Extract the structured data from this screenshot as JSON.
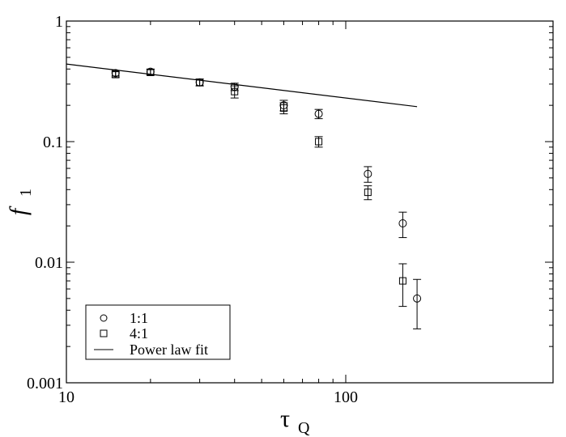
{
  "chart_data": {
    "type": "scatter",
    "x_scale": "log",
    "y_scale": "log",
    "xlim": [
      10,
      180
    ],
    "ylim": [
      0.001,
      1
    ],
    "x_ticks": [
      "10",
      "100"
    ],
    "y_ticks": [
      "0.001",
      "0.01",
      "0.1",
      "1"
    ],
    "xlabel": {
      "main": "τ",
      "sub": "Q"
    },
    "ylabel": {
      "main": "f",
      "sub": "1"
    },
    "grid": false,
    "legend_position": "bottom-left",
    "series": [
      {
        "name": "1:1",
        "marker": "circle",
        "points": [
          {
            "x": 15,
            "y": 0.37,
            "err": 0.02
          },
          {
            "x": 20,
            "y": 0.38,
            "err": 0.02
          },
          {
            "x": 30,
            "y": 0.31,
            "err": 0.02
          },
          {
            "x": 40,
            "y": 0.285,
            "err": 0.02
          },
          {
            "x": 60,
            "y": 0.2,
            "err": 0.02
          },
          {
            "x": 80,
            "y": 0.17,
            "err": 0.015
          },
          {
            "x": 120,
            "y": 0.054,
            "err": 0.008
          },
          {
            "x": 160,
            "y": 0.021,
            "err": 0.005
          },
          {
            "x": 180,
            "y": 0.005,
            "err": 0.0022
          }
        ]
      },
      {
        "name": "4:1",
        "marker": "square",
        "points": [
          {
            "x": 15,
            "y": 0.36,
            "err": 0.02
          },
          {
            "x": 20,
            "y": 0.375,
            "err": 0.02
          },
          {
            "x": 30,
            "y": 0.31,
            "err": 0.02
          },
          {
            "x": 40,
            "y": 0.26,
            "err": 0.03
          },
          {
            "x": 60,
            "y": 0.19,
            "err": 0.02
          },
          {
            "x": 80,
            "y": 0.1,
            "err": 0.01
          },
          {
            "x": 120,
            "y": 0.038,
            "err": 0.005
          },
          {
            "x": 160,
            "y": 0.007,
            "err": 0.0027
          }
        ]
      },
      {
        "name": "Power law fit",
        "marker": "line",
        "points": [
          {
            "x": 10,
            "y": 0.44
          },
          {
            "x": 180,
            "y": 0.195
          }
        ]
      }
    ]
  }
}
